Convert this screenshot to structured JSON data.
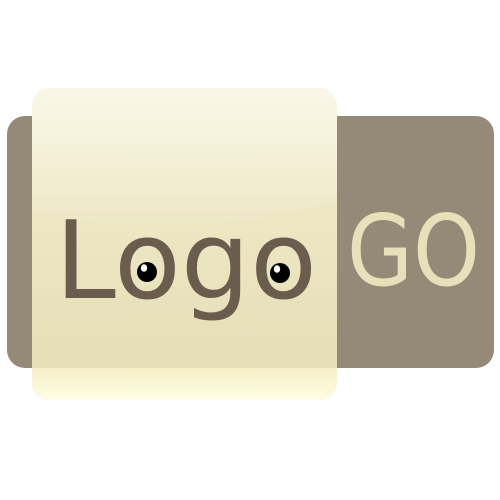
{
  "logo": {
    "word_main": "Logo",
    "word_suffix": "GO",
    "colors": {
      "background": "#ffffff",
      "taupe_plate": "#958978",
      "cream_plate": "#eae4c0",
      "cream_highlight": "#fffde0",
      "main_text": "#6b5d4d",
      "suffix_text": "#e7e1bb",
      "eye_black": "#000000",
      "eye_glint": "#ffffff"
    },
    "icons": [
      "eye-icon",
      "eye-icon"
    ]
  }
}
